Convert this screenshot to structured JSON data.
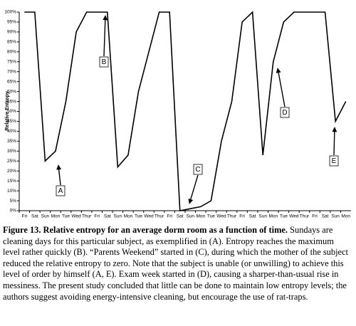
{
  "chart_data": {
    "type": "line",
    "y_label": "Relative Entropy",
    "categories": [
      "Fri",
      "Sat",
      "Sun",
      "Mon",
      "Tue",
      "Wed",
      "Thur",
      "Fri",
      "Sat",
      "Sun",
      "Mon",
      "Tue",
      "Wed",
      "Thur",
      "Fri",
      "Sat",
      "Sun",
      "Mon",
      "Tue",
      "Wed",
      "Thur",
      "Fri",
      "Sat",
      "Sun",
      "Mon",
      "Tue",
      "Wed",
      "Thur",
      "Fri",
      "Sat",
      "Sun",
      "Mon"
    ],
    "values": [
      100,
      100,
      25,
      30,
      55,
      90,
      100,
      100,
      100,
      22,
      28,
      60,
      80,
      100,
      100,
      0,
      1,
      2,
      5,
      35,
      55,
      95,
      100,
      28,
      75,
      95,
      100,
      100,
      100,
      100,
      45,
      55
    ],
    "color": "#000000",
    "ylim": [
      0,
      100
    ],
    "yticks": [
      {
        "value": 0,
        "label": "0%"
      },
      {
        "value": 5,
        "label": "5%"
      },
      {
        "value": 10,
        "label": "10%"
      },
      {
        "value": 15,
        "label": "15%"
      },
      {
        "value": 20,
        "label": "20%"
      },
      {
        "value": 25,
        "label": "25%"
      },
      {
        "value": 30,
        "label": "30%"
      },
      {
        "value": 35,
        "label": "35%"
      },
      {
        "value": 40,
        "label": "40%"
      },
      {
        "value": 45,
        "label": "45%"
      },
      {
        "value": 50,
        "label": "50%"
      },
      {
        "value": 55,
        "label": "55%"
      },
      {
        "value": 60,
        "label": "60%"
      },
      {
        "value": 65,
        "label": "65%"
      },
      {
        "value": 70,
        "label": "70%"
      },
      {
        "value": 75,
        "label": "75%"
      },
      {
        "value": 80,
        "label": "80%"
      },
      {
        "value": 85,
        "label": "85%"
      },
      {
        "value": 90,
        "label": "90%"
      },
      {
        "value": 95,
        "label": "95%"
      },
      {
        "value": 100,
        "label": "100%"
      }
    ],
    "grid": false,
    "annotations": [
      {
        "text": "A"
      },
      {
        "text": "B"
      },
      {
        "text": "C"
      },
      {
        "text": "D"
      },
      {
        "text": "E"
      }
    ]
  },
  "caption": {
    "title": "Figure 13. Relative entropy for an average dorm room as a function of time.",
    "text": "Sundays are cleaning days for this particular subject, as exemplified in (A). Entropy reaches the maximum level rather quickly (B). “Parents Weekend” started in (C), during which the mother of the subject reduced the relative entropy to zero. Note that the subject is unable (or unwilling) to achieve this level of order by himself (A, E). Exam week started in (D), causing a sharper-than-usual rise in messiness. The present study concluded that little can be done to maintain low entropy levels; the authors suggest avoiding energy-intensive cleaning, but encourage the use of rat-traps."
  }
}
